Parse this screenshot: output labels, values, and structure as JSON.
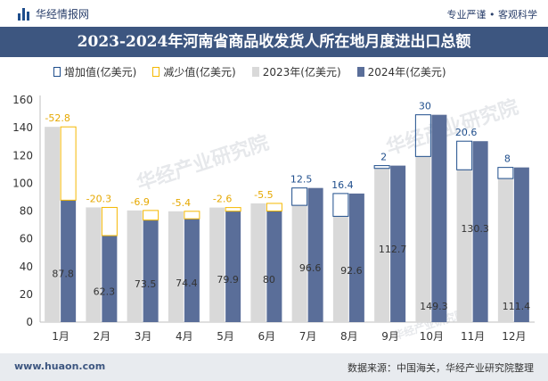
{
  "header": {
    "brand": "华经情报网",
    "slogan": "专业严谨 • 客观科学"
  },
  "footer": {
    "url": "www.huaon.com",
    "source": "数据来源：中国海关，华经产业研究院整理"
  },
  "watermark": "华经产业研究院",
  "colors": {
    "series2023": "#d9d9d9",
    "series2024": "#5a6e99",
    "increase": "#1f4e8c",
    "decrease": "#f5b800",
    "title_bg": "#3d5680"
  },
  "chart_data": {
    "type": "bar",
    "title": "2023-2024年河南省商品收发货人所在地月度进出口总额",
    "categories": [
      "1月",
      "2月",
      "3月",
      "4月",
      "5月",
      "6月",
      "7月",
      "8月",
      "9月",
      "10月",
      "11月",
      "12月"
    ],
    "series": [
      {
        "name": "2023年(亿美元)",
        "values": [
          140.6,
          82.6,
          80.4,
          79.8,
          82.5,
          85.5,
          84.1,
          76.2,
          110.7,
          119.3,
          109.7,
          103.4
        ]
      },
      {
        "name": "2024年(亿美元)",
        "values": [
          87.8,
          62.3,
          73.5,
          74.4,
          79.9,
          80,
          96.6,
          92.6,
          112.7,
          149.3,
          130.3,
          111.4
        ]
      }
    ],
    "change": [
      -52.8,
      -20.3,
      -6.9,
      -5.4,
      -2.6,
      -5.5,
      12.5,
      16.4,
      2,
      30,
      20.6,
      8
    ],
    "change_legend": {
      "increase": "增加值(亿美元)",
      "decrease": "减少值(亿美元)"
    },
    "ylim": [
      0,
      160
    ],
    "yticks": [
      0,
      20,
      40,
      60,
      80,
      100,
      120,
      140,
      160
    ],
    "legend_position": "top-left",
    "grid": false
  }
}
